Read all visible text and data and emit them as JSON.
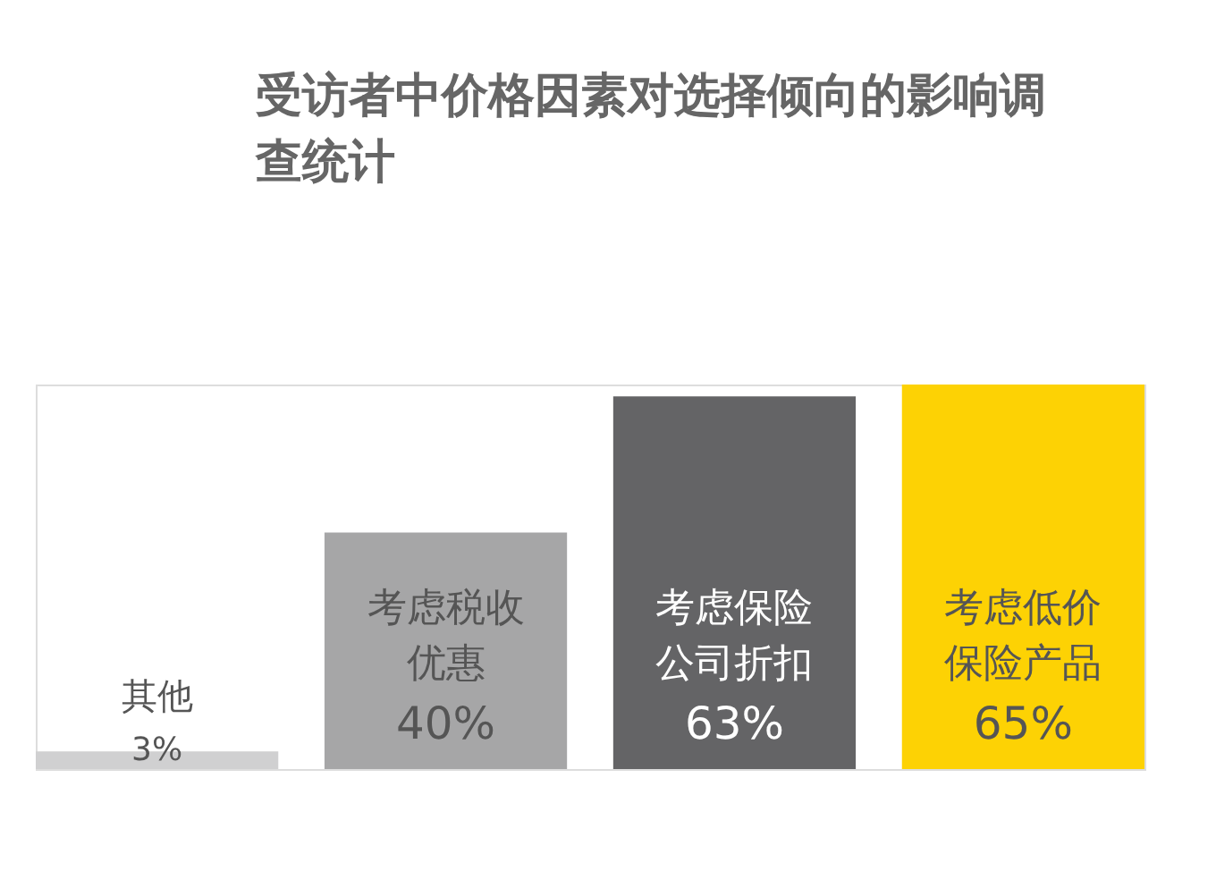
{
  "chart_data": {
    "type": "bar",
    "title": "受访者中价格因素对选择倾向的影响调查统计",
    "categories": [
      "其他",
      "考虑税收优惠",
      "考虑保险公司折扣",
      "考虑低价保险产品"
    ],
    "values": [
      3,
      40,
      63,
      65
    ],
    "colors": [
      "#d0d0d1",
      "#a6a6a7",
      "#646466",
      "#fdd204"
    ],
    "value_labels": [
      "3%",
      "40%",
      "63%",
      "65%"
    ]
  }
}
